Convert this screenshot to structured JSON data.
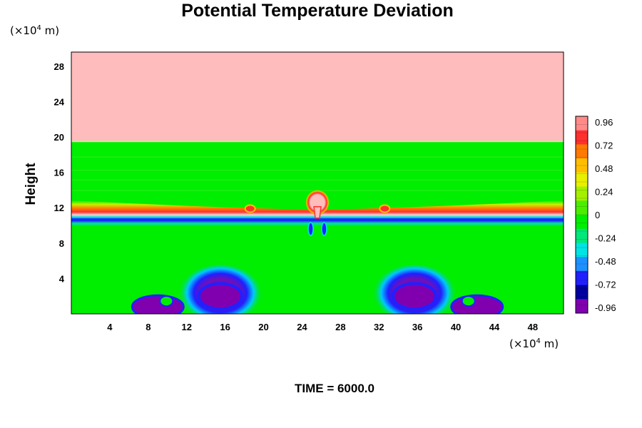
{
  "chart_data": {
    "type": "heatmap",
    "title": "Potential Temperature Deviation",
    "ylabel": "Height",
    "x_unit": "(×10⁴ m)",
    "y_unit": "(×10⁴ m)",
    "x_unit_prefix": "(×10",
    "x_unit_exp": "4",
    "x_unit_suffix": " m)",
    "y_unit_prefix": "(×10",
    "y_unit_exp": "4",
    "y_unit_suffix": " m)",
    "xlim": [
      0,
      51.2
    ],
    "ylim": [
      0,
      29.6
    ],
    "x_ticks": [
      4,
      8,
      12,
      16,
      20,
      24,
      28,
      32,
      36,
      40,
      44,
      48
    ],
    "y_ticks": [
      4,
      8,
      12,
      16,
      20,
      24,
      28
    ],
    "colorbar": {
      "ticks": [
        "0.96",
        "0.72",
        "0.48",
        "0.24",
        "0",
        "-0.24",
        "-0.48",
        "-0.72",
        "-0.96"
      ],
      "range": [
        -0.96,
        0.96
      ]
    },
    "field_features": [
      {
        "kind": "upper-layer",
        "y_from": 19.5,
        "y_to": 29.6,
        "value": 0.9
      },
      {
        "kind": "background",
        "y_from": 0,
        "y_to": 19.5,
        "value": 0.0
      },
      {
        "kind": "warm-band",
        "y_center": 11.8,
        "value": 0.8
      },
      {
        "kind": "cold-band",
        "y_center": 10.6,
        "value": -0.8
      },
      {
        "kind": "warm-plume",
        "x": 25.6,
        "y": 12.6,
        "value": 0.96
      },
      {
        "kind": "cold-vortex",
        "x": 15.5,
        "y": 2.0,
        "value": -0.96
      },
      {
        "kind": "cold-vortex",
        "x": 35.7,
        "y": 2.0,
        "value": -0.96
      }
    ],
    "time_label": "TIME = 6000.0"
  },
  "colors": {
    "upper_layer": "#ffbcbc",
    "background": "#00ee00",
    "colorbar_stops": [
      "#ff8a8a",
      "#ff3030",
      "#ff7a00",
      "#ffbf00",
      "#e8ef00",
      "#a4f000",
      "#4cee00",
      "#00ee00",
      "#00e87a",
      "#00e4e4",
      "#1e90ff",
      "#2020ff",
      "#0000a0",
      "#8000b0"
    ]
  }
}
